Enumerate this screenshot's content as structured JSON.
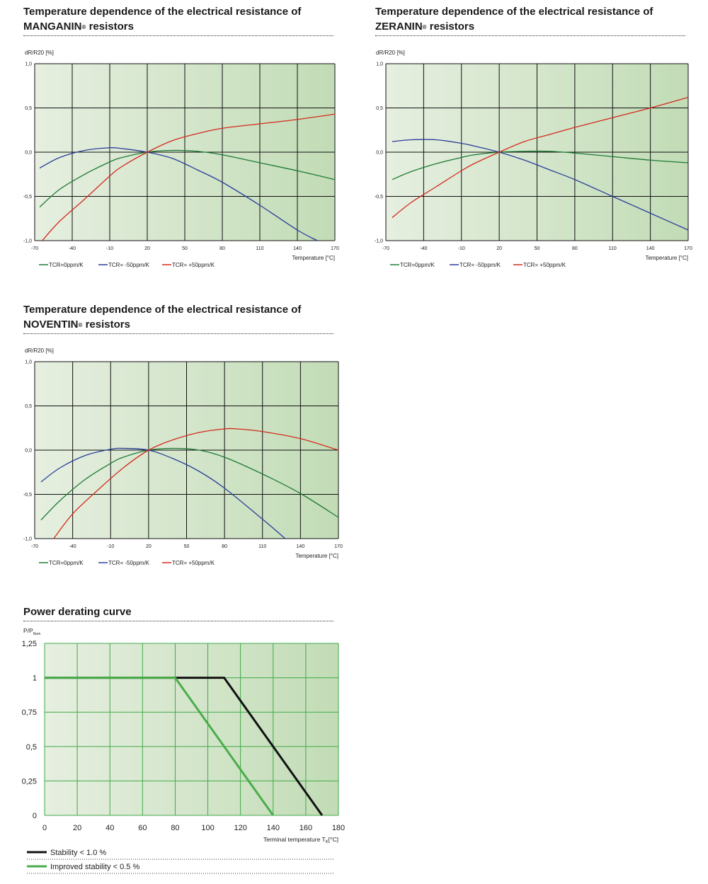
{
  "charts": {
    "manganin": {
      "title_line1": "Temperature dependence of the electrical resistance of",
      "title_line2_name": "MANGANIN",
      "title_line2_sup": "®",
      "title_line2_rest": " resistors",
      "ylabel": "dR/R20 [%]",
      "xlabel": "Temperature [°C]"
    },
    "zeranin": {
      "title_line1": "Temperature dependence of the electrical resistance of",
      "title_line2_name": "ZERANIN",
      "title_line2_sup": "®",
      "title_line2_rest": " resistors",
      "ylabel": "dR/R20 [%]",
      "xlabel": "Temperature [°C]"
    },
    "noventin": {
      "title_line1": "Temperature dependence of the electrical resistance of",
      "title_line2_name": "NOVENTIN",
      "title_line2_sup": "®",
      "title_line2_rest": " resistors",
      "ylabel": "dR/R20 [%]",
      "xlabel": "Temperature [°C]"
    },
    "derating": {
      "title": "Power derating curve",
      "ylabel_main": "P/P",
      "ylabel_sub": "Nom",
      "xlabel_main": "Terminal temperature T",
      "xlabel_sub": "K",
      "xlabel_unit": "[°C]"
    }
  },
  "chart_data": [
    {
      "id": "manganin",
      "type": "line",
      "title": "Temperature dependence of the electrical resistance of MANGANIN® resistors",
      "xlabel": "Temperature [°C]",
      "ylabel": "dR/R20 [%]",
      "xlim": [
        -70,
        170
      ],
      "ylim": [
        -1.0,
        1.0
      ],
      "xticks": [
        -70,
        -40,
        -10,
        20,
        50,
        80,
        110,
        140,
        170
      ],
      "yticks": [
        -1.0,
        -0.5,
        0.0,
        0.5,
        1.0
      ],
      "xtick_labels": [
        "-70",
        "-40",
        "-10",
        "20",
        "50",
        "80",
        "110",
        "140",
        "170"
      ],
      "ytick_labels": [
        "-1,0",
        "-0,5",
        "0,0",
        "0,5",
        "1,0"
      ],
      "grid": true,
      "legend_position": "bottom-left",
      "series": [
        {
          "name": "TCR=0ppm/K",
          "color": "#1e7a35",
          "x": [
            -66,
            -50,
            -30,
            -10,
            0,
            20,
            40,
            60,
            80,
            110,
            140,
            170
          ],
          "y": [
            -0.62,
            -0.42,
            -0.25,
            -0.11,
            -0.06,
            0.0,
            0.02,
            0.01,
            -0.03,
            -0.12,
            -0.21,
            -0.31
          ]
        },
        {
          "name": "TCR= -50ppm/K",
          "color": "#2a3f9a",
          "x": [
            -66,
            -50,
            -30,
            -10,
            0,
            20,
            40,
            60,
            80,
            110,
            140,
            156
          ],
          "y": [
            -0.18,
            -0.06,
            0.02,
            0.05,
            0.04,
            0.0,
            -0.07,
            -0.2,
            -0.34,
            -0.6,
            -0.88,
            -1.0
          ]
        },
        {
          "name": "TCR= +50ppm/K",
          "color": "#d42a1e",
          "x": [
            -64,
            -50,
            -30,
            -10,
            0,
            20,
            40,
            60,
            80,
            110,
            140,
            170
          ],
          "y": [
            -1.0,
            -0.78,
            -0.53,
            -0.27,
            -0.16,
            0.0,
            0.13,
            0.21,
            0.27,
            0.32,
            0.37,
            0.43
          ]
        }
      ]
    },
    {
      "id": "zeranin",
      "type": "line",
      "title": "Temperature dependence of the electrical resistance of ZERANIN® resistors",
      "xlabel": "Temperature [°C]",
      "ylabel": "dR/R20 [%]",
      "xlim": [
        -70,
        170
      ],
      "ylim": [
        -1.0,
        1.0
      ],
      "xticks": [
        -70,
        -40,
        -10,
        20,
        50,
        80,
        110,
        140,
        170
      ],
      "yticks": [
        -1.0,
        -0.5,
        0.0,
        0.5,
        1.0
      ],
      "xtick_labels": [
        "-70",
        "-40",
        "-10",
        "20",
        "50",
        "80",
        "110",
        "140",
        "170"
      ],
      "ytick_labels": [
        "-1,0",
        "-0,5",
        "0,0",
        "0,5",
        "1,0"
      ],
      "grid": true,
      "legend_position": "bottom-left",
      "series": [
        {
          "name": "TCR=0ppm/K",
          "color": "#1e7a35",
          "x": [
            -65,
            -50,
            -30,
            -10,
            0,
            20,
            40,
            60,
            80,
            110,
            140,
            170
          ],
          "y": [
            -0.31,
            -0.22,
            -0.13,
            -0.06,
            -0.03,
            0.0,
            0.01,
            0.01,
            -0.01,
            -0.05,
            -0.09,
            -0.12
          ]
        },
        {
          "name": "TCR= -50ppm/K",
          "color": "#2a3f9a",
          "x": [
            -65,
            -50,
            -30,
            -10,
            0,
            20,
            40,
            60,
            80,
            110,
            140,
            170
          ],
          "y": [
            0.12,
            0.14,
            0.14,
            0.1,
            0.07,
            0.0,
            -0.09,
            -0.2,
            -0.31,
            -0.5,
            -0.69,
            -0.88
          ]
        },
        {
          "name": "TCR= +50ppm/K",
          "color": "#d42a1e",
          "x": [
            -65,
            -50,
            -30,
            -10,
            0,
            20,
            40,
            60,
            80,
            110,
            140,
            170
          ],
          "y": [
            -0.74,
            -0.57,
            -0.39,
            -0.21,
            -0.13,
            0.0,
            0.12,
            0.2,
            0.28,
            0.39,
            0.5,
            0.62
          ]
        }
      ]
    },
    {
      "id": "noventin",
      "type": "line",
      "title": "Temperature dependence of the electrical resistance of NOVENTIN® resistors",
      "xlabel": "Temperature [°C]",
      "ylabel": "dR/R20 [%]",
      "xlim": [
        -70,
        170
      ],
      "ylim": [
        -1.0,
        1.0
      ],
      "xticks": [
        -70,
        -40,
        -10,
        20,
        50,
        80,
        110,
        140,
        170
      ],
      "yticks": [
        -1.0,
        -0.5,
        0.0,
        0.5,
        1.0
      ],
      "xtick_labels": [
        "-70",
        "-40",
        "-10",
        "20",
        "50",
        "80",
        "110",
        "140",
        "170"
      ],
      "ytick_labels": [
        "-1,0",
        "-0,5",
        "0,0",
        "0,5",
        "1,0"
      ],
      "grid": true,
      "legend_position": "bottom-left",
      "series": [
        {
          "name": "TCR=0ppm/K",
          "color": "#1e7a35",
          "x": [
            -65,
            -50,
            -30,
            -10,
            0,
            20,
            40,
            60,
            80,
            110,
            140,
            170
          ],
          "y": [
            -0.79,
            -0.57,
            -0.33,
            -0.15,
            -0.08,
            0.0,
            0.02,
            0.0,
            -0.08,
            -0.27,
            -0.49,
            -0.76
          ]
        },
        {
          "name": "TCR= -50ppm/K",
          "color": "#2a3f9a",
          "x": [
            -65,
            -50,
            -30,
            -10,
            0,
            20,
            40,
            60,
            80,
            110,
            128
          ],
          "y": [
            -0.36,
            -0.2,
            -0.06,
            0.01,
            0.02,
            0.0,
            -0.1,
            -0.24,
            -0.43,
            -0.78,
            -1.0
          ]
        },
        {
          "name": "TCR= +50ppm/K",
          "color": "#d42a1e",
          "x": [
            -55,
            -40,
            -20,
            0,
            20,
            40,
            60,
            80,
            90,
            110,
            140,
            170
          ],
          "y": [
            -1.0,
            -0.72,
            -0.45,
            -0.2,
            0.0,
            0.12,
            0.2,
            0.24,
            0.24,
            0.21,
            0.13,
            0.0
          ]
        }
      ]
    },
    {
      "id": "derating",
      "type": "line",
      "title": "Power derating curve",
      "xlabel": "Terminal temperature TK [°C]",
      "ylabel": "P/PNom",
      "xlim": [
        0,
        180
      ],
      "ylim": [
        0,
        1.25
      ],
      "xticks": [
        0,
        20,
        40,
        60,
        80,
        100,
        120,
        140,
        160,
        180
      ],
      "yticks": [
        0,
        0.25,
        0.5,
        0.75,
        1,
        1.25
      ],
      "xtick_labels": [
        "0",
        "20",
        "40",
        "60",
        "80",
        "100",
        "120",
        "140",
        "160",
        "180"
      ],
      "ytick_labels": [
        "0",
        "0,25",
        "0,5",
        "0,75",
        "1",
        "1,25"
      ],
      "grid": true,
      "legend_position": "below",
      "series": [
        {
          "name": "Stability < 1.0 %",
          "color": "#111111",
          "x": [
            0,
            110,
            170
          ],
          "y": [
            1,
            1,
            0
          ]
        },
        {
          "name": "Improved stability < 0.5 %",
          "color": "#4aad4a",
          "x": [
            0,
            80,
            140
          ],
          "y": [
            1,
            1,
            0
          ]
        }
      ]
    }
  ]
}
